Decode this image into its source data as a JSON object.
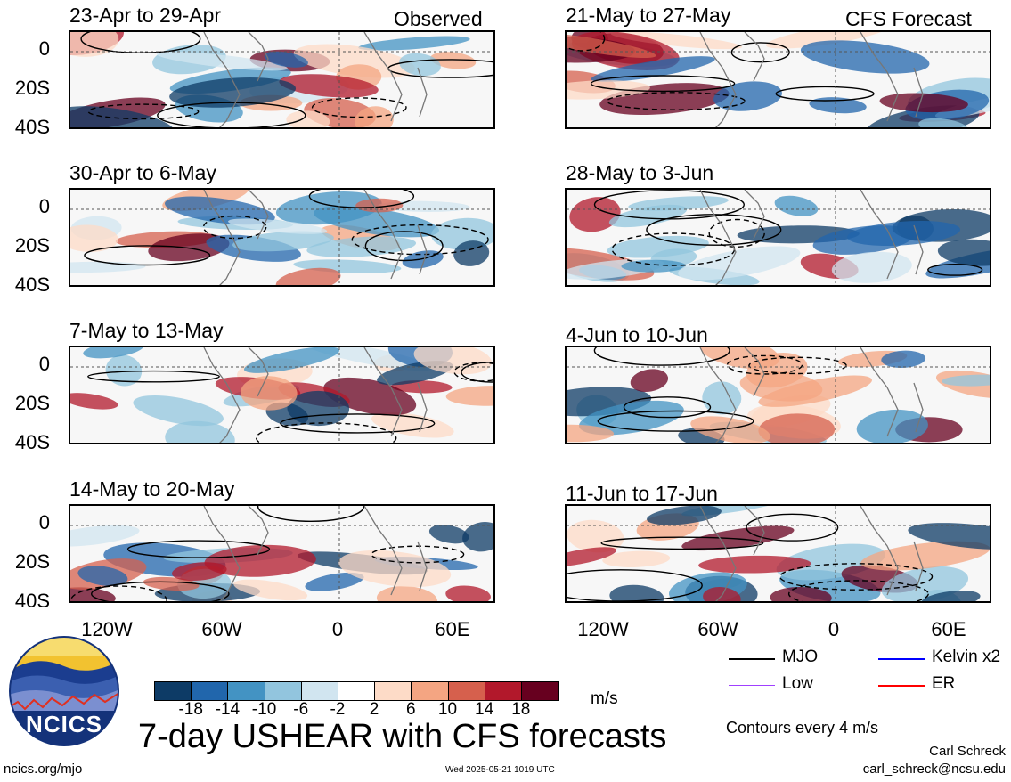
{
  "figure": {
    "title": "7-day USHEAR with CFS forecasts",
    "units": "m/s",
    "contour_note": "Contours every 4 m/s",
    "observed_label": "Observed",
    "forecast_label": "CFS Forecast",
    "author": "Carl Schreck",
    "email": "carl_schreck@ncsu.edu",
    "site": "ncics.org/mjo",
    "timestamp": "Wed 2025-05-21 1019 UTC",
    "logo_text": "NCICS"
  },
  "legend": [
    {
      "label": "MJO",
      "color": "#000000"
    },
    {
      "label": "Kelvin x2",
      "color": "#0000ff"
    },
    {
      "label": "Low",
      "color": "#a040ff"
    },
    {
      "label": "ER",
      "color": "#ff0000"
    }
  ],
  "colorbar": {
    "colors": [
      "#0d3b66",
      "#2166ac",
      "#4393c3",
      "#92c5de",
      "#d1e5f0",
      "#ffffff",
      "#fddbc7",
      "#f4a582",
      "#d6604d",
      "#b2182b",
      "#67001f"
    ],
    "labels": [
      "-18",
      "-14",
      "-10",
      "-6",
      "-2",
      "2",
      "6",
      "10",
      "14",
      "18"
    ]
  },
  "chart_data": {
    "type": "heatmap",
    "variable": "USHEAR",
    "y_axis": {
      "ticks": [
        "0",
        "20S",
        "40S"
      ]
    },
    "x_axis": {
      "ticks": [
        "120W",
        "60W",
        "0",
        "60E"
      ]
    },
    "panels": [
      {
        "column": "observed",
        "title": "23-Apr to 29-Apr"
      },
      {
        "column": "observed",
        "title": "30-Apr to 6-May"
      },
      {
        "column": "observed",
        "title": "7-May to 13-May"
      },
      {
        "column": "observed",
        "title": "14-May to 20-May"
      },
      {
        "column": "forecast",
        "title": "21-May to 27-May"
      },
      {
        "column": "forecast",
        "title": "28-May to 3-Jun"
      },
      {
        "column": "forecast",
        "title": "4-Jun to 10-Jun"
      },
      {
        "column": "forecast",
        "title": "11-Jun to 17-Jun"
      }
    ]
  }
}
